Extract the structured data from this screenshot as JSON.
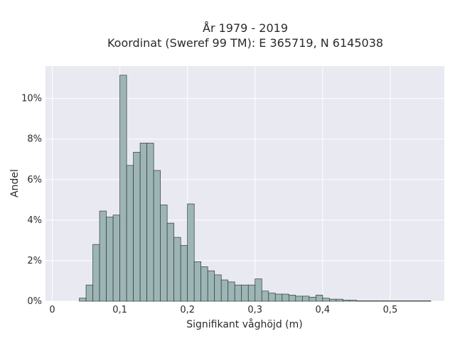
{
  "chart_data": {
    "type": "bar",
    "title_lines": [
      "År 1979 - 2019",
      "Koordinat (Sweref 99 TM): E 365719, N 6145038"
    ],
    "xlabel": "Signifikant våghöjd (m)",
    "ylabel": "Andel",
    "xlim": [
      -0.01,
      0.58
    ],
    "ylim": [
      0,
      11.6
    ],
    "x_ticks": [
      {
        "value": 0,
        "label": "0"
      },
      {
        "value": 0.1,
        "label": "0,1"
      },
      {
        "value": 0.2,
        "label": "0,2"
      },
      {
        "value": 0.3,
        "label": "0,3"
      },
      {
        "value": 0.4,
        "label": "0,4"
      },
      {
        "value": 0.5,
        "label": "0,5"
      }
    ],
    "y_ticks": [
      {
        "value": 0,
        "label": "0%"
      },
      {
        "value": 2,
        "label": "2%"
      },
      {
        "value": 4,
        "label": "4%"
      },
      {
        "value": 6,
        "label": "6%"
      },
      {
        "value": 8,
        "label": "8%"
      },
      {
        "value": 10,
        "label": "10%"
      }
    ],
    "bin_start": 0.01,
    "bin_width": 0.01,
    "values": [
      0,
      0,
      0,
      0.15,
      0.8,
      2.8,
      4.45,
      4.15,
      4.25,
      11.15,
      6.7,
      7.35,
      7.8,
      7.8,
      6.45,
      4.75,
      3.85,
      3.15,
      2.75,
      4.8,
      1.95,
      1.7,
      1.5,
      1.3,
      1.05,
      0.95,
      0.8,
      0.8,
      0.8,
      1.1,
      0.5,
      0.4,
      0.35,
      0.35,
      0.3,
      0.25,
      0.25,
      0.2,
      0.3,
      0.15,
      0.1,
      0.1,
      0.05,
      0.05,
      0.02,
      0.02,
      0.02,
      0.02,
      0.02,
      0.02,
      0.02,
      0.02,
      0.02,
      0.02,
      0.02
    ],
    "grid": true,
    "colors": {
      "bar_fill": "#9db5b5",
      "bar_edge": "#2f3b3b",
      "plot_bg": "#e9e9f1",
      "grid": "#ffffff"
    }
  }
}
